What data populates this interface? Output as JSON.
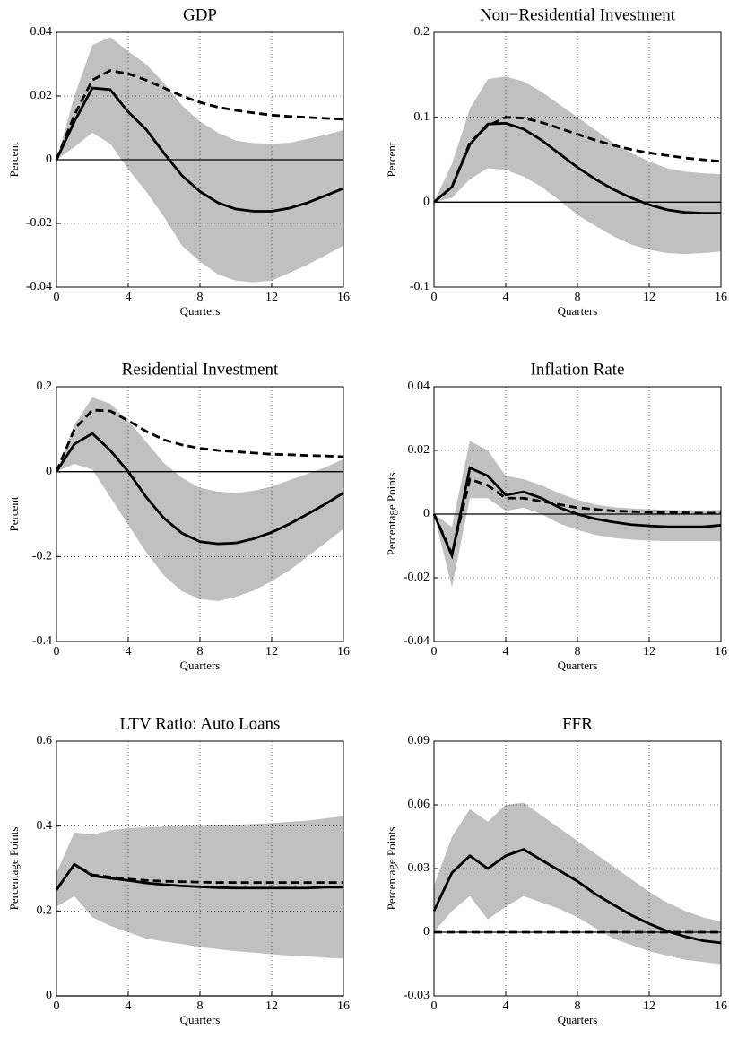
{
  "chart_data": [
    {
      "type": "line",
      "title": "GDP",
      "ylabel": "Percent",
      "xlabel": "Quarters",
      "x": [
        0,
        1,
        2,
        3,
        4,
        5,
        6,
        7,
        8,
        9,
        10,
        11,
        12,
        13,
        14,
        15,
        16
      ],
      "xlim": [
        0,
        16
      ],
      "xticks": [
        0,
        4,
        8,
        12,
        16
      ],
      "ylim": [
        -0.04,
        0.04
      ],
      "yticks": [
        -0.04,
        -0.02,
        0,
        0.02,
        0.04
      ],
      "grid": true,
      "hline": 0,
      "band": {
        "color": "#c0c0c0",
        "upper": [
          0,
          0.02,
          0.036,
          0.0385,
          0.034,
          0.03,
          0.024,
          0.017,
          0.012,
          0.0085,
          0.006,
          0.0052,
          0.005,
          0.0053,
          0.0065,
          0.0078,
          0.0093
        ],
        "lower": [
          0,
          0.004,
          0.0085,
          0.005,
          -0.003,
          -0.01,
          -0.018,
          -0.027,
          -0.032,
          -0.036,
          -0.038,
          -0.0385,
          -0.038,
          -0.0355,
          -0.033,
          -0.03,
          -0.027
        ]
      },
      "series": [
        {
          "color": "#000000",
          "dashed": false,
          "values": [
            0,
            0.012,
            0.0225,
            0.022,
            0.015,
            0.0095,
            0.002,
            -0.005,
            -0.01,
            -0.0135,
            -0.0155,
            -0.0162,
            -0.0162,
            -0.0152,
            -0.0135,
            -0.0113,
            -0.009
          ]
        },
        {
          "color": "#000000",
          "dashed": true,
          "values": [
            0,
            0.014,
            0.025,
            0.028,
            0.027,
            0.025,
            0.0225,
            0.02,
            0.018,
            0.0165,
            0.0155,
            0.0147,
            0.014,
            0.0136,
            0.0133,
            0.013,
            0.0127
          ]
        }
      ]
    },
    {
      "type": "line",
      "title": "Non−Residential Investment",
      "ylabel": "Percent",
      "xlabel": "Quarters",
      "x": [
        0,
        1,
        2,
        3,
        4,
        5,
        6,
        7,
        8,
        9,
        10,
        11,
        12,
        13,
        14,
        15,
        16
      ],
      "xlim": [
        0,
        16
      ],
      "xticks": [
        0,
        4,
        8,
        12,
        16
      ],
      "ylim": [
        -0.1,
        0.2
      ],
      "yticks": [
        -0.1,
        0,
        0.1,
        0.2
      ],
      "grid": true,
      "hline": 0,
      "band": {
        "color": "#c0c0c0",
        "upper": [
          0,
          0.045,
          0.11,
          0.145,
          0.148,
          0.142,
          0.13,
          0.115,
          0.1,
          0.085,
          0.07,
          0.058,
          0.048,
          0.04,
          0.036,
          0.034,
          0.033
        ],
        "lower": [
          0,
          0.005,
          0.027,
          0.04,
          0.038,
          0.03,
          0.018,
          0.002,
          -0.015,
          -0.028,
          -0.04,
          -0.05,
          -0.056,
          -0.06,
          -0.061,
          -0.06,
          -0.058
        ]
      },
      "series": [
        {
          "color": "#000000",
          "dashed": false,
          "values": [
            0,
            0.018,
            0.068,
            0.092,
            0.093,
            0.086,
            0.073,
            0.057,
            0.041,
            0.027,
            0.015,
            0.005,
            -0.003,
            -0.009,
            -0.012,
            -0.013,
            -0.013
          ]
        },
        {
          "color": "#000000",
          "dashed": true,
          "values": [
            0,
            0.018,
            0.07,
            0.09,
            0.1,
            0.099,
            0.094,
            0.087,
            0.08,
            0.073,
            0.067,
            0.062,
            0.058,
            0.055,
            0.052,
            0.05,
            0.048
          ]
        }
      ]
    },
    {
      "type": "line",
      "title": "Residential Investment",
      "ylabel": "Percent",
      "xlabel": "Quarters",
      "x": [
        0,
        1,
        2,
        3,
        4,
        5,
        6,
        7,
        8,
        9,
        10,
        11,
        12,
        13,
        14,
        15,
        16
      ],
      "xlim": [
        0,
        16
      ],
      "xticks": [
        0,
        4,
        8,
        12,
        16
      ],
      "ylim": [
        -0.4,
        0.2
      ],
      "yticks": [
        -0.4,
        -0.2,
        0,
        0.2
      ],
      "grid": true,
      "hline": 0,
      "band": {
        "color": "#c0c0c0",
        "upper": [
          0,
          0.11,
          0.175,
          0.16,
          0.12,
          0.07,
          0.02,
          -0.015,
          -0.038,
          -0.047,
          -0.05,
          -0.045,
          -0.035,
          -0.02,
          -0.005,
          0.01,
          0.03
        ],
        "lower": [
          0,
          0.018,
          0.005,
          -0.06,
          -0.125,
          -0.19,
          -0.245,
          -0.282,
          -0.3,
          -0.305,
          -0.295,
          -0.28,
          -0.258,
          -0.232,
          -0.2,
          -0.168,
          -0.135
        ]
      },
      "series": [
        {
          "color": "#000000",
          "dashed": false,
          "values": [
            0,
            0.065,
            0.09,
            0.05,
            0,
            -0.06,
            -0.11,
            -0.145,
            -0.165,
            -0.17,
            -0.168,
            -0.158,
            -0.143,
            -0.123,
            -0.1,
            -0.076,
            -0.05
          ]
        },
        {
          "color": "#000000",
          "dashed": true,
          "values": [
            0,
            0.1,
            0.145,
            0.143,
            0.12,
            0.095,
            0.075,
            0.063,
            0.055,
            0.05,
            0.047,
            0.044,
            0.041,
            0.04,
            0.038,
            0.037,
            0.035
          ]
        }
      ]
    },
    {
      "type": "line",
      "title": "Inflation Rate",
      "ylabel": "Percentage Points",
      "xlabel": "Quarters",
      "x": [
        0,
        1,
        2,
        3,
        4,
        5,
        6,
        7,
        8,
        9,
        10,
        11,
        12,
        13,
        14,
        15,
        16
      ],
      "xlim": [
        0,
        16
      ],
      "xticks": [
        0,
        4,
        8,
        12,
        16
      ],
      "ylim": [
        -0.04,
        0.04
      ],
      "yticks": [
        -0.04,
        -0.02,
        0,
        0.02,
        0.04
      ],
      "grid": true,
      "hline": 0,
      "band": {
        "color": "#c0c0c0",
        "upper": [
          0,
          -0.004,
          0.023,
          0.02,
          0.012,
          0.011,
          0.009,
          0.0065,
          0.0045,
          0.003,
          0.0022,
          0.0018,
          0.0015,
          0.0013,
          0.0012,
          0.0012,
          0.0013
        ],
        "lower": [
          0,
          -0.023,
          0.005,
          0.005,
          0.001,
          0.002,
          0,
          -0.003,
          -0.005,
          -0.0065,
          -0.0075,
          -0.008,
          -0.0083,
          -0.0085,
          -0.0085,
          -0.0085,
          -0.0085
        ]
      },
      "series": [
        {
          "color": "#000000",
          "dashed": false,
          "values": [
            0,
            -0.013,
            0.0145,
            0.012,
            0.006,
            0.007,
            0.005,
            0.002,
            0,
            -0.0015,
            -0.0025,
            -0.0033,
            -0.0037,
            -0.004,
            -0.004,
            -0.004,
            -0.0035
          ]
        },
        {
          "color": "#000000",
          "dashed": true,
          "values": [
            0,
            -0.0125,
            0.011,
            0.009,
            0.005,
            0.005,
            0.004,
            0.003,
            0.002,
            0.0015,
            0.001,
            0.0008,
            0.0006,
            0.0005,
            0.0004,
            0.0003,
            0.0003
          ]
        }
      ]
    },
    {
      "type": "line",
      "title": "LTV Ratio: Auto Loans",
      "ylabel": "Percentage Points",
      "xlabel": "Quarters",
      "x": [
        0,
        1,
        2,
        3,
        4,
        5,
        6,
        7,
        8,
        9,
        10,
        11,
        12,
        13,
        14,
        15,
        16
      ],
      "xlim": [
        0,
        16
      ],
      "xticks": [
        0,
        4,
        8,
        12,
        16
      ],
      "ylim": [
        0,
        0.6
      ],
      "yticks": [
        0,
        0.2,
        0.4,
        0.6
      ],
      "grid": true,
      "hline": 0,
      "band": {
        "color": "#c0c0c0",
        "upper": [
          0.29,
          0.385,
          0.38,
          0.39,
          0.395,
          0.397,
          0.399,
          0.4,
          0.401,
          0.402,
          0.403,
          0.405,
          0.407,
          0.41,
          0.413,
          0.418,
          0.423
        ],
        "lower": [
          0.21,
          0.235,
          0.185,
          0.165,
          0.15,
          0.135,
          0.128,
          0.122,
          0.115,
          0.11,
          0.105,
          0.102,
          0.098,
          0.095,
          0.093,
          0.09,
          0.088
        ]
      },
      "series": [
        {
          "color": "#000000",
          "dashed": false,
          "values": [
            0.25,
            0.31,
            0.283,
            0.277,
            0.272,
            0.266,
            0.262,
            0.259,
            0.257,
            0.255,
            0.254,
            0.254,
            0.254,
            0.254,
            0.254,
            0.256,
            0.256
          ]
        },
        {
          "color": "#000000",
          "dashed": true,
          "values": [
            0.25,
            0.31,
            0.285,
            0.28,
            0.275,
            0.272,
            0.27,
            0.269,
            0.268,
            0.267,
            0.267,
            0.267,
            0.267,
            0.267,
            0.267,
            0.267,
            0.267
          ]
        }
      ]
    },
    {
      "type": "line",
      "title": "FFR",
      "ylabel": "Percentage Points",
      "xlabel": "Quarters",
      "x": [
        0,
        1,
        2,
        3,
        4,
        5,
        6,
        7,
        8,
        9,
        10,
        11,
        12,
        13,
        14,
        15,
        16
      ],
      "xlim": [
        0,
        16
      ],
      "xticks": [
        0,
        4,
        8,
        12,
        16
      ],
      "ylim": [
        -0.03,
        0.09
      ],
      "yticks": [
        -0.03,
        0,
        0.03,
        0.06,
        0.09
      ],
      "grid": true,
      "hline": 0,
      "band": {
        "color": "#c0c0c0",
        "upper": [
          0.022,
          0.045,
          0.058,
          0.052,
          0.06,
          0.061,
          0.055,
          0.049,
          0.043,
          0.037,
          0.031,
          0.025,
          0.019,
          0.014,
          0.01,
          0.007,
          0.005
        ],
        "lower": [
          0,
          0.01,
          0.017,
          0.006,
          0.012,
          0.017,
          0.014,
          0.011,
          0.007,
          0.002,
          -0.003,
          -0.006,
          -0.009,
          -0.011,
          -0.013,
          -0.014,
          -0.015
        ]
      },
      "series": [
        {
          "color": "#000000",
          "dashed": false,
          "values": [
            0.01,
            0.028,
            0.036,
            0.03,
            0.036,
            0.039,
            0.034,
            0.029,
            0.024,
            0.018,
            0.013,
            0.008,
            0.004,
            0.0005,
            -0.002,
            -0.004,
            -0.005
          ]
        },
        {
          "color": "#000000",
          "dashed": true,
          "values": [
            0,
            0,
            0,
            0,
            0,
            0,
            0,
            0,
            0,
            0,
            0,
            0,
            0,
            0,
            0,
            0,
            0
          ]
        }
      ]
    }
  ]
}
